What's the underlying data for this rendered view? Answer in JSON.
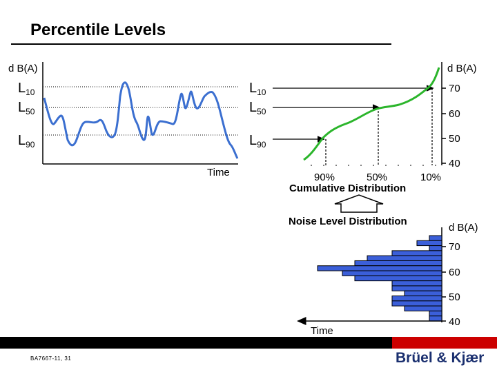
{
  "title": "Percentile Levels",
  "left_panel": {
    "y_unit": "d B(A)",
    "levels": [
      {
        "main": "L",
        "sub": "10"
      },
      {
        "main": "L",
        "sub": "50"
      },
      {
        "main": "L",
        "sub": "90"
      }
    ],
    "x_label": "Time"
  },
  "cumulative_panel": {
    "y_unit": "d B(A)",
    "levels": [
      {
        "main": "L",
        "sub": "10"
      },
      {
        "main": "L",
        "sub": "50"
      },
      {
        "main": "L",
        "sub": "90"
      }
    ],
    "y_ticks": [
      "70",
      "60",
      "50",
      "40"
    ],
    "x_ticks": [
      "90%",
      "50%",
      "10%"
    ],
    "x_label": "Cumulative Distribution"
  },
  "distribution_panel": {
    "title": "Noise Level Distribution",
    "y_unit": "d B(A)",
    "y_ticks": [
      "70",
      "60",
      "50",
      "40"
    ],
    "x_label": "Time"
  },
  "chart_data": {
    "type": "bar",
    "orientation": "horizontal",
    "description_axis": "dB(A)",
    "ylim": [
      40,
      74
    ],
    "bins": [
      73,
      71,
      69,
      67,
      65,
      63,
      61,
      59,
      57,
      55,
      53,
      51,
      49,
      47,
      45,
      43,
      41
    ],
    "values": [
      1,
      2,
      1,
      4,
      6,
      7,
      10,
      8,
      7,
      4,
      4,
      3,
      4,
      4,
      3,
      1,
      1
    ],
    "colors": {
      "bar": "#3b5fd9",
      "curve_cumulative": "#2bb52b",
      "curve_time": "#3b6fd0"
    }
  },
  "footer": {
    "doc_number": "BA7667-11, 31",
    "logo": "Brüel & Kjær"
  }
}
